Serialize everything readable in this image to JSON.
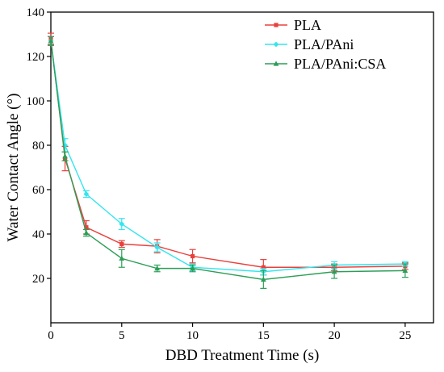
{
  "chart_data": {
    "type": "line",
    "xlabel": "DBD Treatment Time (s)",
    "ylabel": "Water Contact Angle (°)",
    "xlim": [
      0,
      27
    ],
    "ylim": [
      0,
      140
    ],
    "x_ticks": [
      0,
      5,
      10,
      15,
      20,
      25
    ],
    "y_ticks": [
      20,
      40,
      60,
      80,
      100,
      120,
      140
    ],
    "grid": false,
    "legend_position": "top-right",
    "x": [
      0,
      1,
      2.5,
      5,
      7.5,
      10,
      15,
      20,
      25
    ],
    "series": [
      {
        "name": "PLA",
        "color": "#e8413c",
        "marker": "square",
        "values": [
          128,
          74,
          43,
          35.5,
          34.5,
          30,
          25,
          25,
          25.5
        ],
        "errors": [
          2.5,
          5.5,
          3,
          1.5,
          3,
          3,
          3.5,
          1.5,
          1.5
        ]
      },
      {
        "name": "PLA/PAni",
        "color": "#33e5ee",
        "marker": "diamond",
        "values": [
          127,
          80,
          58,
          44.5,
          34,
          25,
          23,
          26,
          26.5
        ],
        "errors": [
          2,
          3,
          1.5,
          2.5,
          2,
          1.5,
          1.5,
          1.5,
          1
        ]
      },
      {
        "name": "PLA/PAni:CSA",
        "color": "#2c9e58",
        "marker": "triangle",
        "values": [
          127,
          75,
          40.5,
          29,
          24.5,
          24.5,
          19.5,
          23,
          23.5
        ],
        "errors": [
          2,
          2,
          1.5,
          4,
          1.5,
          1.5,
          4,
          3,
          3
        ]
      }
    ]
  }
}
